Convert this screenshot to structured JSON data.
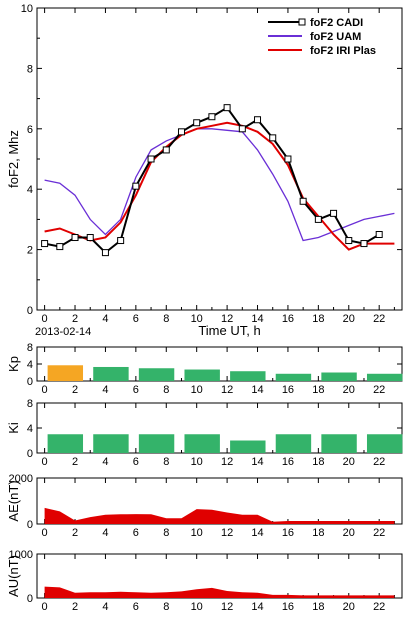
{
  "colors": {
    "cadi": "#000000",
    "uam": "#6a2fd6",
    "iri": "#e00000",
    "kp_active": "#f5a623",
    "kp_quiet": "#34b36a",
    "ki_bar": "#34b36a",
    "ae_fill": "#e00000",
    "au_fill": "#e00000"
  },
  "date_label": "2013-02-14",
  "chart_data": [
    {
      "type": "line",
      "xlabel": "Time UT, h",
      "ylabel": "foF2, Mhz",
      "xlim": [
        -0.5,
        23.5
      ],
      "ylim": [
        0,
        10
      ],
      "xticks": [
        0,
        2,
        4,
        6,
        8,
        10,
        12,
        14,
        16,
        18,
        20,
        22
      ],
      "yticks": [
        0,
        2,
        4,
        6,
        8,
        10
      ],
      "legend_position": "top-right",
      "series": [
        {
          "name": "foF2 CADI",
          "marker": "square",
          "x": [
            0,
            1,
            2,
            3,
            4,
            5,
            6,
            7,
            8,
            9,
            10,
            11,
            12,
            13,
            14,
            15,
            16,
            17,
            18,
            19,
            20,
            21,
            22
          ],
          "y": [
            2.2,
            2.1,
            2.4,
            2.4,
            1.9,
            2.3,
            4.1,
            5.0,
            5.3,
            5.9,
            6.2,
            6.4,
            6.7,
            6.0,
            6.3,
            5.7,
            5.0,
            3.6,
            3.0,
            3.2,
            2.3,
            2.2,
            2.5
          ]
        },
        {
          "name": "foF2 UAM",
          "x": [
            0,
            1,
            2,
            3,
            4,
            5,
            6,
            7,
            8,
            9,
            10,
            11,
            12,
            13,
            14,
            15,
            16,
            17,
            18,
            19,
            20,
            21,
            22,
            23
          ],
          "y": [
            4.3,
            4.2,
            3.8,
            3.0,
            2.5,
            3.0,
            4.4,
            5.3,
            5.6,
            5.8,
            6.0,
            6.0,
            5.95,
            5.9,
            5.3,
            4.5,
            3.6,
            2.3,
            2.4,
            2.6,
            2.8,
            3.0,
            3.1,
            3.2
          ]
        },
        {
          "name": "foF2 IRI Plas",
          "x": [
            0,
            1,
            2,
            3,
            4,
            5,
            6,
            7,
            8,
            9,
            10,
            11,
            12,
            13,
            14,
            15,
            16,
            17,
            18,
            19,
            20,
            21,
            22,
            23
          ],
          "y": [
            2.6,
            2.7,
            2.5,
            2.3,
            2.4,
            2.9,
            3.8,
            4.9,
            5.4,
            5.8,
            6.0,
            6.1,
            6.2,
            6.1,
            5.9,
            5.5,
            4.8,
            3.7,
            3.1,
            2.5,
            2.0,
            2.2,
            2.2,
            2.2
          ]
        }
      ]
    },
    {
      "type": "bar",
      "ylabel": "Kp",
      "ylim": [
        0,
        8
      ],
      "yticks": [
        0,
        4,
        8
      ],
      "xticks": [
        0,
        2,
        4,
        6,
        8,
        10,
        12,
        14,
        16,
        18,
        20,
        22
      ],
      "bins": [
        [
          0,
          3
        ],
        [
          3,
          6
        ],
        [
          6,
          9
        ],
        [
          9,
          12
        ],
        [
          12,
          15
        ],
        [
          15,
          18
        ],
        [
          18,
          21
        ],
        [
          21,
          24
        ]
      ],
      "values": [
        3.7,
        3.3,
        3.0,
        2.7,
        2.3,
        1.7,
        2.0,
        1.7
      ],
      "colors": [
        "#f5a623",
        "#34b36a",
        "#34b36a",
        "#34b36a",
        "#34b36a",
        "#34b36a",
        "#34b36a",
        "#34b36a"
      ]
    },
    {
      "type": "bar",
      "ylabel": "Ki",
      "ylim": [
        0,
        8
      ],
      "yticks": [
        0,
        4,
        8
      ],
      "xticks": [
        0,
        2,
        4,
        6,
        8,
        10,
        12,
        14,
        16,
        18,
        20,
        22
      ],
      "bins": [
        [
          0,
          3
        ],
        [
          3,
          6
        ],
        [
          6,
          9
        ],
        [
          9,
          12
        ],
        [
          12,
          15
        ],
        [
          15,
          18
        ],
        [
          18,
          21
        ],
        [
          21,
          24
        ]
      ],
      "values": [
        3.0,
        3.0,
        3.0,
        3.0,
        2.0,
        3.0,
        3.0,
        3.0
      ]
    },
    {
      "type": "area",
      "ylabel": "AE(nT)",
      "ylim": [
        0,
        2000
      ],
      "yticks": [
        0,
        2000
      ],
      "xticks": [
        0,
        2,
        4,
        6,
        8,
        10,
        12,
        14,
        16,
        18,
        20,
        22
      ],
      "x": [
        0,
        1,
        2,
        3,
        4,
        5,
        6,
        7,
        8,
        9,
        10,
        11,
        12,
        13,
        14,
        15,
        16,
        17,
        18,
        19,
        20,
        21,
        22,
        23
      ],
      "y": [
        700,
        550,
        150,
        300,
        400,
        420,
        430,
        420,
        250,
        250,
        650,
        620,
        500,
        400,
        400,
        100,
        130,
        130,
        130,
        130,
        130,
        130,
        130,
        130
      ]
    },
    {
      "type": "area",
      "ylabel": "AU(nT)",
      "ylim": [
        0,
        1000
      ],
      "yticks": [
        0,
        1000
      ],
      "xticks": [
        0,
        2,
        4,
        6,
        8,
        10,
        12,
        14,
        16,
        18,
        20,
        22
      ],
      "x": [
        0,
        1,
        2,
        3,
        4,
        5,
        6,
        7,
        8,
        9,
        10,
        11,
        12,
        13,
        14,
        15,
        16,
        17,
        18,
        19,
        20,
        21,
        22,
        23
      ],
      "y": [
        260,
        240,
        120,
        130,
        130,
        140,
        130,
        120,
        130,
        150,
        200,
        230,
        160,
        130,
        120,
        70,
        70,
        60,
        60,
        60,
        60,
        60,
        60,
        60
      ]
    }
  ]
}
